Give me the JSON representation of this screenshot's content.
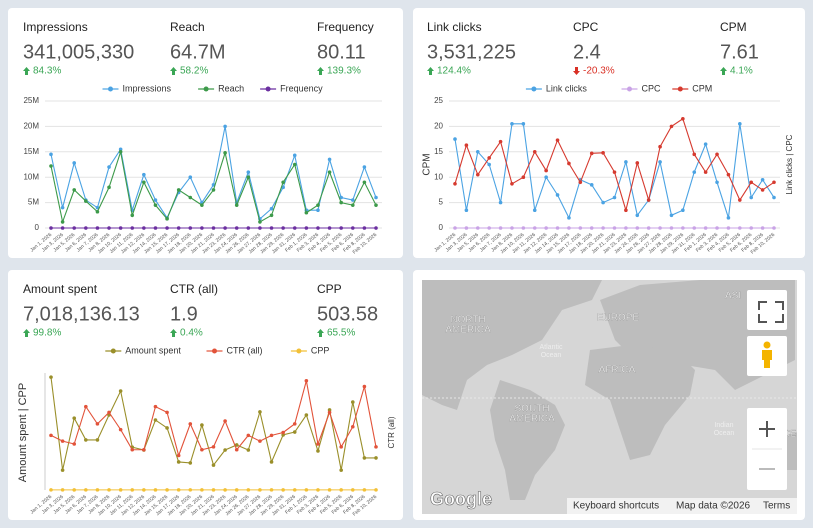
{
  "kpi_panels": [
    [
      {
        "label": "Impressions",
        "value": "341,005,330",
        "change": "84.3%",
        "direction": "up"
      },
      {
        "label": "Reach",
        "value": "64.7M",
        "change": "58.2%",
        "direction": "up"
      },
      {
        "label": "Frequency",
        "value": "80.11",
        "change": "139.3%",
        "direction": "up"
      }
    ],
    [
      {
        "label": "Link clicks",
        "value": "3,531,225",
        "change": "124.4%",
        "direction": "up"
      },
      {
        "label": "CPC",
        "value": "2.4",
        "change": "-20.3%",
        "direction": "down"
      },
      {
        "label": "CPM",
        "value": "7.61",
        "change": "4.1%",
        "direction": "up"
      }
    ],
    [
      {
        "label": "Amount spent",
        "value": "7,018,136.13",
        "change": "99.8%",
        "direction": "up"
      },
      {
        "label": "CTR (all)",
        "value": "1.9",
        "change": "0.4%",
        "direction": "up"
      },
      {
        "label": "CPP",
        "value": "503.58",
        "change": "65.5%",
        "direction": "up"
      }
    ]
  ],
  "chart_data": [
    {
      "type": "line",
      "grid": true,
      "legend": "top",
      "categories": [
        "Jan 1, 2026",
        "Jan 3, 2026",
        "Jan 5, 2026",
        "Jan 6, 2026",
        "Jan 7, 2026",
        "Jan 8, 2026",
        "Jan 10, 2026",
        "Jan 11, 2026",
        "Jan 12, 2026",
        "Jan 14, 2026",
        "Jan 15, 2026",
        "Jan 17, 2026",
        "Jan 18, 2026",
        "Jan 20, 2026",
        "Jan 21, 2026",
        "Jan 23, 2026",
        "Jan 24, 2026",
        "Jan 26, 2026",
        "Jan 27, 2026",
        "Jan 28, 2026",
        "Jan 29, 2026",
        "Jan 31, 2026",
        "Feb 1, 2026",
        "Feb 3, 2026",
        "Feb 4, 2026",
        "Feb 5, 2026",
        "Feb 6, 2026",
        "Feb 8, 2026",
        "Feb 10, 2026"
      ],
      "ylim": [
        0,
        25000000
      ],
      "yticks": [
        0,
        {
          "value": 5000000,
          "label": "5M"
        },
        {
          "value": 10000000,
          "label": "10M"
        },
        {
          "value": 15000000,
          "label": "15M"
        },
        {
          "value": 20000000,
          "label": "20M"
        },
        {
          "value": 25000000,
          "label": "25M"
        }
      ],
      "series": [
        {
          "name": "Impressions",
          "color": "#4ba3e3",
          "values": [
            14500000,
            4000000,
            12800000,
            5500000,
            4000000,
            12000000,
            15500000,
            3500000,
            10500000,
            5500000,
            2000000,
            7000000,
            10000000,
            5000000,
            8500000,
            20000000,
            5000000,
            11000000,
            1800000,
            3800000,
            8000000,
            14300000,
            3500000,
            3500000,
            13500000,
            6000000,
            5500000,
            12000000,
            6000000
          ]
        },
        {
          "name": "Reach",
          "color": "#3d9a4a",
          "values": [
            12200000,
            1200000,
            7500000,
            5300000,
            3200000,
            8000000,
            15000000,
            2500000,
            9000000,
            4500000,
            1800000,
            7500000,
            6000000,
            4500000,
            7500000,
            14800000,
            4500000,
            10000000,
            1200000,
            2500000,
            9000000,
            12500000,
            3000000,
            4500000,
            11000000,
            5000000,
            4500000,
            9000000,
            4500000
          ]
        },
        {
          "name": "Frequency",
          "color": "#6b2fa0",
          "values": [
            2.4,
            2.6,
            2.5,
            2.3,
            2.7,
            2.5,
            2.4,
            2.8,
            2.5,
            2.6,
            2.3,
            2.4,
            2.7,
            2.5,
            2.6,
            2.4,
            2.5,
            2.7,
            2.3,
            2.6,
            2.5,
            2.4,
            2.6,
            2.5,
            2.7,
            2.4,
            2.5,
            2.6,
            2.4
          ]
        }
      ]
    },
    {
      "type": "line",
      "grid": true,
      "legend": "top",
      "categories": [
        "Jan 1, 2026",
        "Jan 3, 2026",
        "Jan 5, 2026",
        "Jan 6, 2026",
        "Jan 7, 2026",
        "Jan 8, 2026",
        "Jan 10, 2026",
        "Jan 11, 2026",
        "Jan 12, 2026",
        "Jan 14, 2026",
        "Jan 15, 2026",
        "Jan 17, 2026",
        "Jan 18, 2026",
        "Jan 20, 2026",
        "Jan 21, 2026",
        "Jan 23, 2026",
        "Jan 24, 2026",
        "Jan 26, 2026",
        "Jan 27, 2026",
        "Jan 28, 2026",
        "Jan 29, 2026",
        "Jan 31, 2026",
        "Feb 1, 2026",
        "Feb 3, 2026",
        "Feb 4, 2026",
        "Feb 5, 2026",
        "Feb 6, 2026",
        "Feb 8, 2026",
        "Feb 10, 2026"
      ],
      "ylabel": "CPM",
      "y2label": "Link clicks | CPC",
      "ylim": [
        0,
        25
      ],
      "yticks": [
        0,
        5,
        10,
        15,
        20,
        25
      ],
      "y2lim": [
        0,
        250000
      ],
      "series": [
        {
          "name": "Link clicks",
          "color": "#4ba3e3",
          "axis": "y2",
          "values": [
            175000,
            35000,
            150000,
            125000,
            50000,
            205000,
            205000,
            35000,
            100000,
            65000,
            20000,
            95000,
            85000,
            50000,
            60000,
            130000,
            25000,
            55000,
            130000,
            25000,
            35000,
            110000,
            165000,
            90000,
            20000,
            205000,
            60000,
            95000,
            60000
          ]
        },
        {
          "name": "CPC",
          "color": "#c9a3e6",
          "axis": "y2",
          "values": [
            2.5,
            2.3,
            2.6,
            2.4,
            2.2,
            2.5,
            2.7,
            2.4,
            2.3,
            2.5,
            2.6,
            2.4,
            2.3,
            2.5,
            2.4,
            2.6,
            2.5,
            2.3,
            2.4,
            2.5,
            2.6,
            2.4,
            2.3,
            2.5,
            2.4,
            2.6,
            2.5,
            2.3,
            2.4
          ]
        },
        {
          "name": "CPM",
          "color": "#d63a2f",
          "values": [
            8.7,
            16.3,
            10.5,
            13.8,
            17,
            8.7,
            10,
            15,
            11.3,
            17.3,
            12.7,
            9,
            14.7,
            14.8,
            11,
            3.5,
            12.8,
            5.5,
            16,
            20,
            21.5,
            14.5,
            11,
            14.5,
            10.5,
            5.5,
            9,
            7.5,
            9
          ]
        }
      ]
    },
    {
      "type": "line",
      "grid": false,
      "legend": "top",
      "categories": [
        "Jan 1, 2026",
        "Jan 3, 2026",
        "Jan 5, 2026",
        "Jan 6, 2026",
        "Jan 7, 2026",
        "Jan 8, 2026",
        "Jan 10, 2026",
        "Jan 11, 2026",
        "Jan 12, 2026",
        "Jan 14, 2026",
        "Jan 15, 2026",
        "Jan 17, 2026",
        "Jan 18, 2026",
        "Jan 20, 2026",
        "Jan 21, 2026",
        "Jan 23, 2026",
        "Jan 24, 2026",
        "Jan 26, 2026",
        "Jan 27, 2026",
        "Jan 28, 2026",
        "Jan 29, 2026",
        "Jan 31, 2026",
        "Feb 1, 2026",
        "Feb 3, 2026",
        "Feb 4, 2026",
        "Feb 5, 2026",
        "Feb 6, 2026",
        "Feb 8, 2026",
        "Feb 10, 2026"
      ],
      "ylabel": "Amount spent | CPP",
      "y2label": "CTR (all)",
      "ylim": [
        0,
        480000
      ],
      "y2lim": [
        0,
        4
      ],
      "series": [
        {
          "name": "Amount spent",
          "color": "#9a8f2a",
          "values": [
            471000,
            83000,
            300000,
            209000,
            209000,
            313000,
            413000,
            179000,
            167000,
            292000,
            259000,
            117000,
            113000,
            271000,
            104000,
            167000,
            188000,
            167000,
            326000,
            117000,
            230000,
            242000,
            313000,
            163000,
            334000,
            83000,
            367000,
            134000,
            134000
          ]
        },
        {
          "name": "CTR (all)",
          "color": "#e2533a",
          "axis": "y2",
          "values": [
            1.9,
            1.7,
            1.6,
            2.9,
            2.3,
            2.7,
            2.1,
            1.4,
            1.4,
            2.9,
            2.7,
            1.2,
            2.3,
            1.4,
            1.5,
            2.4,
            1.4,
            1.9,
            1.7,
            1.9,
            2.0,
            2.3,
            3.8,
            1.6,
            2.7,
            1.5,
            2.2,
            3.6,
            1.5
          ]
        },
        {
          "name": "CPP",
          "color": "#f2c037",
          "values": [
            480,
            520,
            510,
            495,
            530,
            505,
            490,
            515,
            500,
            525,
            510,
            495,
            505,
            520,
            500,
            490,
            515,
            505,
            510,
            495,
            500,
            520,
            505,
            490,
            515,
            500,
            510,
            505,
            495
          ]
        }
      ]
    }
  ],
  "map": {
    "labels": [
      "NORTH",
      "AMERICA",
      "EUROPE",
      "AFRICA",
      "SOUTH",
      "AMERICA",
      "ASI",
      "Atlantic",
      "Ocean",
      "Indian",
      "Ocean",
      "CE"
    ],
    "logo": "Google",
    "footer": [
      "Keyboard shortcuts",
      "Map data ©2026",
      "Terms"
    ]
  }
}
